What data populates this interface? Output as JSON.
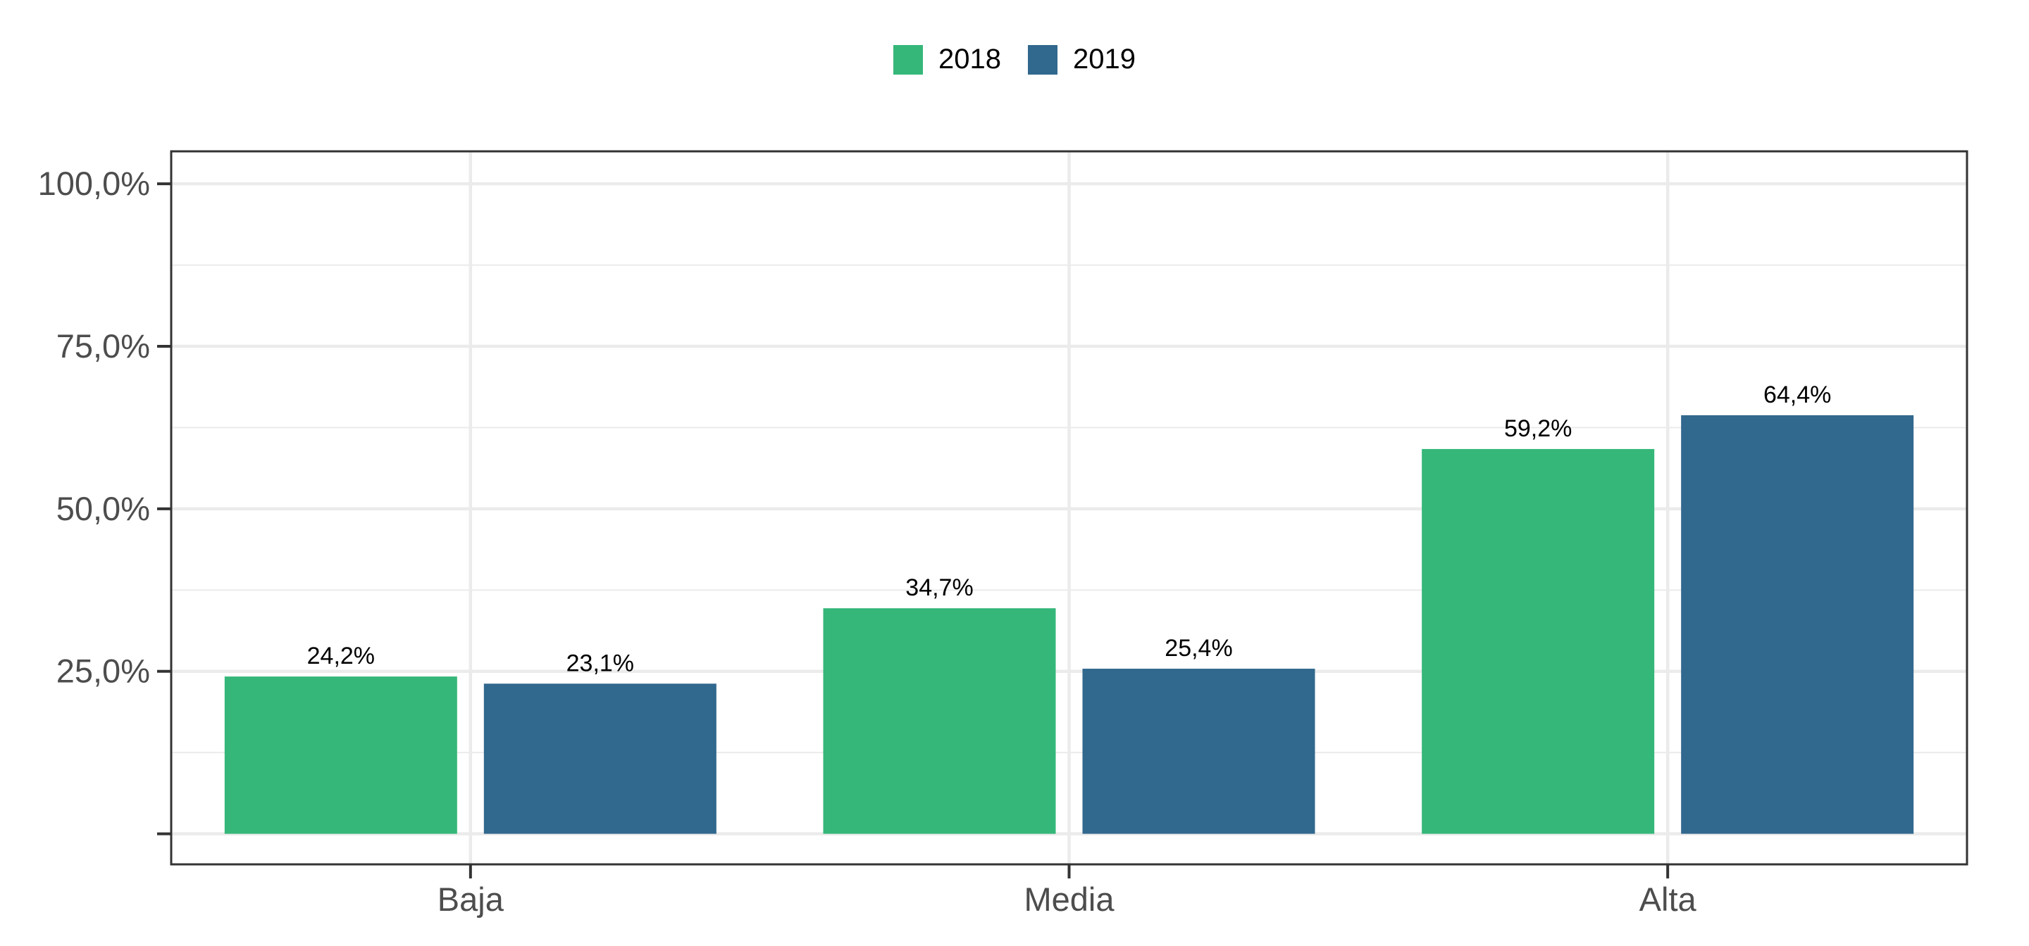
{
  "chart_data": {
    "type": "bar",
    "categories": [
      "Baja",
      "Media",
      "Alta"
    ],
    "series": [
      {
        "name": "2018",
        "color": "#35B779",
        "values": [
          24.2,
          34.7,
          59.2
        ],
        "labels": [
          "24,2%",
          "34,7%",
          "59,2%"
        ]
      },
      {
        "name": "2019",
        "color": "#31688E",
        "values": [
          23.1,
          25.4,
          64.4
        ],
        "labels": [
          "23,1%",
          "25,4%",
          "64,4%"
        ]
      }
    ],
    "ylim": [
      -4.7,
      105
    ],
    "yticks": [
      {
        "value": 0,
        "label": ""
      },
      {
        "value": 25,
        "label": "25,0%"
      },
      {
        "value": 50,
        "label": "50,0%"
      },
      {
        "value": 75,
        "label": "75,0%"
      },
      {
        "value": 100,
        "label": "100,0%"
      }
    ],
    "title": "",
    "xlabel": "",
    "ylabel": "",
    "grid": true,
    "legend_position": "top"
  }
}
